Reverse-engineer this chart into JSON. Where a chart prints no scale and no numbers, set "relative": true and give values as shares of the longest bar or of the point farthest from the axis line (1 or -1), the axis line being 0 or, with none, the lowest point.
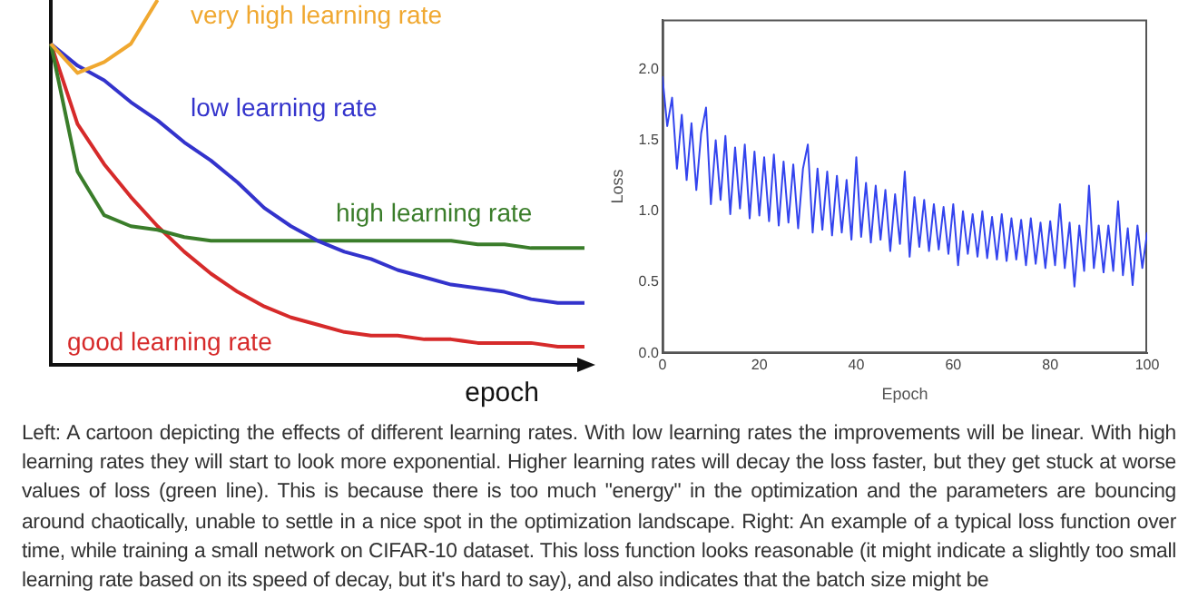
{
  "chart_data": [
    {
      "type": "line",
      "relative": true,
      "tick_labels": false,
      "xlabel": "epoch",
      "categories": [
        null,
        null,
        null,
        null,
        null,
        null,
        null,
        null,
        null,
        null,
        null,
        null,
        null,
        null,
        null,
        null,
        null,
        null,
        null,
        null,
        null
      ],
      "series": [
        {
          "name": "very high learning rate",
          "color": "#f0a830",
          "values": [
            0.88,
            0.8,
            0.83,
            0.88,
            1,
            null,
            null,
            null,
            null,
            null,
            null,
            null,
            null,
            null,
            null,
            null,
            null,
            null,
            null,
            null,
            null
          ]
        },
        {
          "name": "low learning rate",
          "color": "#3333cc",
          "values": [
            0.88,
            0.82,
            0.78,
            0.72,
            0.67,
            0.61,
            0.56,
            0.5,
            0.43,
            0.38,
            0.34,
            0.31,
            0.29,
            0.26,
            0.24,
            0.22,
            0.21,
            0.2,
            0.18,
            0.17,
            0.17
          ]
        },
        {
          "name": "high learning rate",
          "color": "#3a7d2a",
          "values": [
            0.88,
            0.53,
            0.41,
            0.38,
            0.37,
            0.35,
            0.34,
            0.34,
            0.34,
            0.34,
            0.34,
            0.34,
            0.34,
            0.34,
            0.34,
            0.34,
            0.33,
            0.33,
            0.32,
            0.32,
            0.32
          ]
        },
        {
          "name": "good learning rate",
          "color": "#d62a2a",
          "values": [
            0.88,
            0.66,
            0.55,
            0.46,
            0.38,
            0.31,
            0.25,
            0.2,
            0.16,
            0.13,
            0.11,
            0.09,
            0.08,
            0.08,
            0.07,
            0.07,
            0.06,
            0.06,
            0.06,
            0.05,
            0.05
          ]
        }
      ],
      "annotations": [
        "Left: A cartoon depicting the effects of different learning rates. With low learning rates the improvements will be linear. With high learning rates they will start to look more exponential. Higher learning rates will decay the loss faster, but they get stuck at worse values of loss (green line). This is because there is too much \"energy\" in the optimization and the parameters are bouncing around chaotically, unable to settle in a nice spot in the optimization landscape. Right: An example of a typical loss function over time, while training a small network on CIFAR-10 dataset. This loss function looks reasonable (it might indicate a slightly too small learning rate based on its speed of decay, but it's hard to say), and also indicates that the batch size might be"
      ]
    },
    {
      "type": "line",
      "xlabel": "Epoch",
      "ylabel": "Loss",
      "xlim": [
        0,
        100
      ],
      "xticks": [
        0,
        20,
        40,
        60,
        80,
        100
      ],
      "ylim": [
        0,
        2.35
      ],
      "yticks": [
        {
          "value": 0,
          "label": "0.0"
        },
        {
          "value": 0.5,
          "label": "0.5"
        },
        {
          "value": 1,
          "label": "1.0"
        },
        {
          "value": 1.5,
          "label": "1.5"
        },
        {
          "value": 2,
          "label": "2.0"
        }
      ],
      "x": [
        0,
        1,
        2,
        3,
        4,
        5,
        6,
        7,
        8,
        9,
        10,
        11,
        12,
        13,
        14,
        15,
        16,
        17,
        18,
        19,
        20,
        21,
        22,
        23,
        24,
        25,
        26,
        27,
        28,
        29,
        30,
        31,
        32,
        33,
        34,
        35,
        36,
        37,
        38,
        39,
        40,
        41,
        42,
        43,
        44,
        45,
        46,
        47,
        48,
        49,
        50,
        51,
        52,
        53,
        54,
        55,
        56,
        57,
        58,
        59,
        60,
        61,
        62,
        63,
        64,
        65,
        66,
        67,
        68,
        69,
        70,
        71,
        72,
        73,
        74,
        75,
        76,
        77,
        78,
        79,
        80,
        81,
        82,
        83,
        84,
        85,
        86,
        87,
        88,
        89,
        90,
        91,
        92,
        93,
        94,
        95,
        96,
        97,
        98,
        99,
        100
      ],
      "series": [
        {
          "color": "#3344ee",
          "values": [
            1.95,
            1.6,
            1.8,
            1.3,
            1.68,
            1.22,
            1.62,
            1.15,
            1.55,
            1.73,
            1.05,
            1.5,
            1.08,
            1.53,
            0.98,
            1.45,
            1.02,
            1.47,
            0.95,
            1.42,
            0.97,
            1.38,
            0.93,
            1.4,
            0.9,
            1.35,
            0.92,
            1.33,
            0.88,
            1.3,
            1.47,
            0.85,
            1.3,
            0.87,
            1.28,
            0.83,
            1.25,
            0.85,
            1.22,
            0.8,
            1.38,
            0.82,
            1.2,
            0.78,
            1.18,
            0.8,
            1.15,
            0.72,
            1.12,
            0.77,
            1.28,
            0.68,
            1.1,
            0.75,
            1.08,
            0.72,
            1.05,
            0.73,
            1.03,
            0.7,
            1.05,
            0.62,
            1.0,
            0.7,
            0.98,
            0.68,
            1.0,
            0.67,
            0.96,
            0.66,
            0.98,
            0.65,
            0.95,
            0.66,
            0.94,
            0.62,
            0.95,
            0.63,
            0.92,
            0.6,
            0.93,
            0.62,
            1.05,
            0.6,
            0.92,
            0.47,
            0.9,
            0.58,
            1.18,
            0.6,
            0.9,
            0.57,
            0.9,
            0.58,
            1.07,
            0.55,
            0.88,
            0.48,
            0.9,
            0.6,
            0.85
          ]
        }
      ]
    }
  ]
}
